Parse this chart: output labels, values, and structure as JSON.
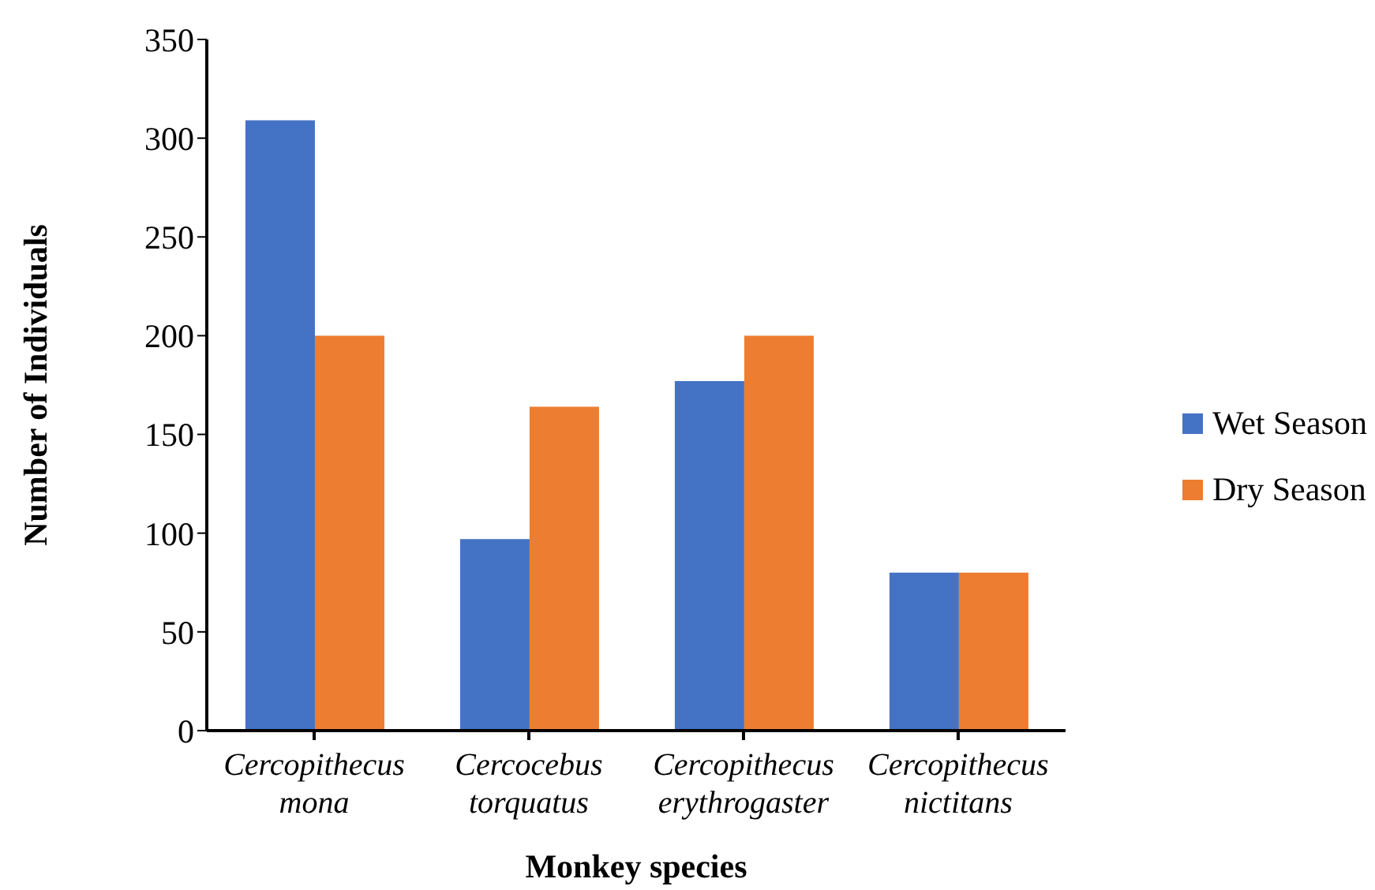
{
  "chart_data": {
    "type": "bar",
    "xlabel": "Monkey species",
    "ylabel": "Number of Individuals",
    "categories": [
      "Cercopithecus mona",
      "Cercocebus torquatus",
      "Cercopithecus erythrogaster",
      "Cercopithecus nictitans"
    ],
    "series": [
      {
        "name": "Wet Season",
        "color": "#4472c4",
        "values": [
          309,
          97,
          177,
          80
        ]
      },
      {
        "name": "Dry Season",
        "color": "#ed7d31",
        "values": [
          200,
          164,
          200,
          80
        ]
      }
    ],
    "ylim": [
      0,
      350
    ],
    "yticks": [
      0,
      50,
      100,
      150,
      200,
      250,
      300,
      350
    ],
    "grid": false,
    "legend": "right"
  }
}
